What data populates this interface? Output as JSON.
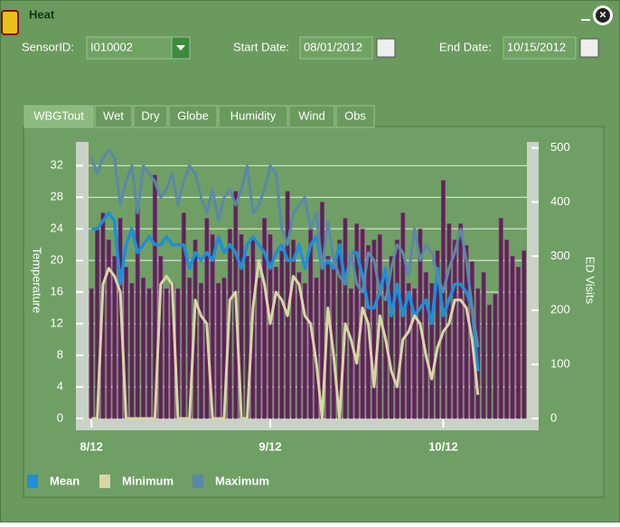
{
  "window": {
    "title": "Heat",
    "sensor_label": "SensorID:",
    "sensor_value": "I010002",
    "start_label": "Start Date:",
    "start_value": "08/01/2012",
    "end_label": "End Date:",
    "end_value": "10/15/2012",
    "tabs": [
      "WBGTout",
      "Wet",
      "Dry",
      "Globe",
      "Humidity",
      "Wind",
      "Obs"
    ]
  },
  "chart_data": {
    "type": "bar-line",
    "ylabel": "Temperature",
    "y2label": "ED Visits",
    "categories": [
      "8/12",
      null,
      null,
      null,
      null,
      null,
      null,
      null,
      null,
      null,
      null,
      null,
      null,
      null,
      null,
      null,
      null,
      null,
      null,
      null,
      null,
      null,
      null,
      null,
      null,
      null,
      null,
      null,
      null,
      null,
      null,
      "9/12",
      null,
      null,
      null,
      null,
      null,
      null,
      null,
      null,
      null,
      null,
      null,
      null,
      null,
      null,
      null,
      null,
      null,
      null,
      null,
      null,
      null,
      null,
      null,
      null,
      null,
      null,
      null,
      null,
      null,
      "10/12",
      null,
      null,
      null,
      null,
      null,
      null,
      null,
      null,
      null,
      null,
      null,
      null,
      null,
      null
    ],
    "ylim": [
      0,
      35
    ],
    "yticks": [
      0,
      4,
      8,
      12,
      16,
      20,
      24,
      28,
      32
    ],
    "y2lim": [
      0,
      511
    ],
    "y2ticks": [
      0,
      100,
      200,
      300,
      400,
      500
    ],
    "grid": true,
    "series": [
      {
        "color": "#5c2456",
        "axis": "y2",
        "values": [
          240,
          350,
          380,
          330,
          300,
          370,
          280,
          250,
          390,
          260,
          240,
          450,
          300,
          240,
          250,
          240,
          380,
          260,
          330,
          250,
          370,
          340,
          250,
          260,
          350,
          420,
          340,
          300,
          330,
          260,
          370,
          340,
          280,
          310,
          420,
          330,
          270,
          250,
          350,
          260,
          400,
          300,
          280,
          330,
          370,
          240,
          360,
          350,
          320,
          330,
          340,
          270,
          300,
          330,
          380,
          250,
          240,
          350,
          270,
          250,
          310,
          440,
          360,
          330,
          360,
          320,
          290,
          240,
          270,
          210,
          230,
          370,
          330,
          300,
          280,
          310
        ]
      },
      {
        "name": "Mean",
        "color": "#1e8fd8",
        "values": [
          24,
          24,
          25,
          26,
          25,
          17,
          22,
          24,
          21,
          22,
          23,
          22,
          22,
          23,
          22,
          22,
          22,
          19,
          21,
          20,
          21,
          20,
          23,
          21,
          22,
          21,
          19,
          22,
          23,
          22,
          21,
          19,
          21,
          22,
          20,
          20,
          22,
          19,
          22,
          23,
          19,
          20,
          19,
          22,
          17,
          21,
          21,
          18,
          14,
          14,
          16,
          19,
          13,
          17,
          13,
          16,
          13,
          14,
          15,
          12,
          19,
          13,
          15,
          17,
          17,
          16,
          14,
          6,
          null,
          null,
          null,
          null,
          null,
          null,
          null,
          null
        ]
      },
      {
        "name": "Minimum",
        "color": "#d9d6a6",
        "values": [
          0,
          0,
          17,
          19,
          18,
          16,
          0,
          0,
          0,
          0,
          0,
          0,
          17,
          18,
          17,
          0,
          0,
          0,
          15,
          13,
          12,
          0,
          0,
          0,
          15,
          16,
          0,
          0,
          14,
          20,
          17,
          12,
          16,
          15,
          13,
          18,
          17,
          13,
          12,
          7,
          0,
          14,
          8,
          0,
          12,
          10,
          7,
          14,
          12,
          4,
          13,
          10,
          6,
          4,
          10,
          11,
          13,
          12,
          8,
          5,
          9,
          11,
          12,
          15,
          15,
          14,
          10,
          3,
          null,
          null,
          null,
          null,
          null,
          null,
          null,
          null
        ]
      },
      {
        "name": "Maximum",
        "color": "#5b88a8",
        "values": [
          33,
          31,
          33,
          34,
          33,
          27,
          30,
          32,
          26,
          32,
          31,
          30,
          28,
          29,
          31,
          27,
          30,
          32,
          31,
          28,
          26,
          29,
          25,
          28,
          29,
          27,
          29,
          32,
          26,
          27,
          29,
          32,
          31,
          24,
          22,
          26,
          27,
          28,
          24,
          26,
          19,
          25,
          20,
          18,
          17,
          21,
          17,
          16,
          21,
          20,
          16,
          15,
          19,
          22,
          21,
          18,
          24,
          20,
          22,
          21,
          18,
          16,
          19,
          21,
          24,
          20,
          14,
          9,
          null,
          null,
          null,
          null,
          null,
          null,
          null,
          null
        ]
      }
    ]
  }
}
